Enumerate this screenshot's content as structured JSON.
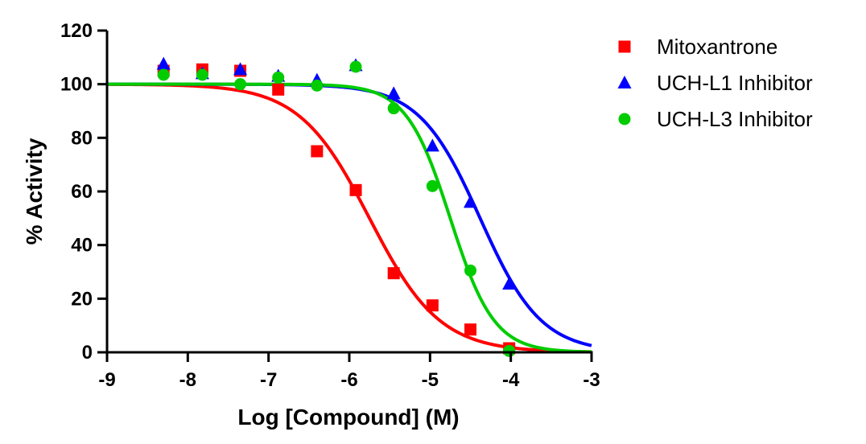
{
  "chart_data": {
    "type": "scatter",
    "title": "",
    "xlabel": "Log [Compound] (M)",
    "ylabel": "% Activity",
    "xlim": [
      -9,
      -3
    ],
    "ylim": [
      0,
      120
    ],
    "xticks": [
      -9,
      -8,
      -7,
      -6,
      -5,
      -4,
      -3
    ],
    "yticks": [
      0,
      20,
      40,
      60,
      80,
      100,
      120
    ],
    "grid": false,
    "legend_position": "top-right",
    "series": [
      {
        "name": "Mitoxantrone",
        "marker": "square",
        "color": "#ff0000",
        "points": [
          [
            -8.3,
            105
          ],
          [
            -7.82,
            105.5
          ],
          [
            -7.35,
            105
          ],
          [
            -6.88,
            98
          ],
          [
            -6.4,
            75
          ],
          [
            -5.92,
            60.5
          ],
          [
            -5.45,
            29.5
          ],
          [
            -4.97,
            17.5
          ],
          [
            -4.5,
            8.5
          ],
          [
            -4.02,
            1.5
          ]
        ],
        "fit": {
          "top": 100,
          "bottom": 0,
          "logIC50": -5.75,
          "hill": 1.0
        }
      },
      {
        "name": "UCH-L1 Inhibitor",
        "marker": "triangle",
        "color": "#0000ff",
        "points": [
          [
            -8.3,
            107.5
          ],
          [
            -7.82,
            104
          ],
          [
            -7.35,
            105.5
          ],
          [
            -6.88,
            103
          ],
          [
            -6.4,
            101.5
          ],
          [
            -5.92,
            107
          ],
          [
            -5.45,
            96.5
          ],
          [
            -4.97,
            77
          ],
          [
            -4.5,
            56
          ],
          [
            -4.02,
            25.5
          ]
        ],
        "fit": {
          "top": 100,
          "bottom": 0,
          "logIC50": -4.38,
          "hill": 1.15
        }
      },
      {
        "name": "UCH-L3 Inhibitor",
        "marker": "circle",
        "color": "#00cc00",
        "points": [
          [
            -8.3,
            103.5
          ],
          [
            -7.82,
            103.5
          ],
          [
            -7.35,
            100
          ],
          [
            -6.88,
            102.5
          ],
          [
            -6.4,
            99.5
          ],
          [
            -5.92,
            106.5
          ],
          [
            -5.45,
            91
          ],
          [
            -4.97,
            62
          ],
          [
            -4.5,
            30.5
          ],
          [
            -4.02,
            0.5
          ]
        ],
        "fit": {
          "top": 100,
          "bottom": 0,
          "logIC50": -4.75,
          "hill": 1.6
        }
      }
    ]
  }
}
